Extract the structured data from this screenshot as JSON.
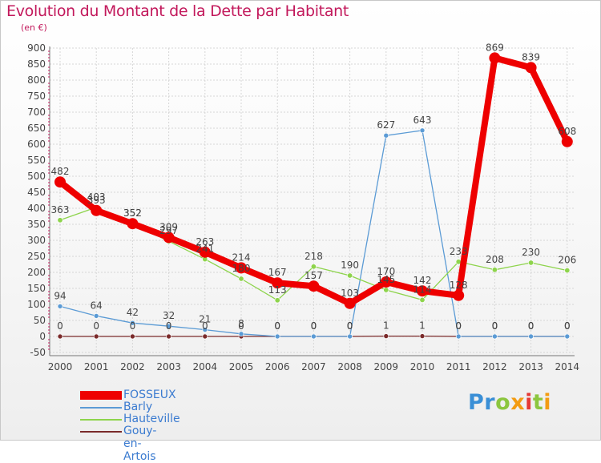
{
  "header": {
    "title": "Evolution du Montant de la Dette par Habitant",
    "subtitle": "(en €)"
  },
  "logo": {
    "letters": [
      {
        "char": "P",
        "color": "#3a8fd6"
      },
      {
        "char": "r",
        "color": "#3a8fd6"
      },
      {
        "char": "o",
        "color": "#8cc63f"
      },
      {
        "char": "x",
        "color": "#f39c12"
      },
      {
        "char": "i",
        "color": "#e53935"
      },
      {
        "char": "t",
        "color": "#8cc63f"
      },
      {
        "char": "i",
        "color": "#f39c12"
      }
    ]
  },
  "chart_data": {
    "type": "line",
    "title": "Evolution du Montant de la Dette par Habitant",
    "ylabel": "(en €)",
    "x": [
      "2000",
      "2001",
      "2002",
      "2003",
      "2004",
      "2005",
      "2006",
      "2007",
      "2008",
      "2009",
      "2010",
      "2011",
      "2012",
      "2013",
      "2014"
    ],
    "y_ticks": [
      "900",
      "850",
      "800",
      "750",
      "700",
      "650",
      "600",
      "550",
      "500",
      "450",
      "400",
      "350",
      "300",
      "250",
      "200",
      "150",
      "100",
      "50",
      "0",
      "-50"
    ],
    "ylim": [
      -50,
      900
    ],
    "grid": true,
    "series": [
      {
        "name": "FOSSEUX",
        "color": "#ee0000",
        "values": [
          482,
          393,
          352,
          309,
          263,
          214,
          167,
          157,
          103,
          170,
          142,
          128,
          869,
          839,
          608
        ]
      },
      {
        "name": "Barly",
        "color": "#5b9bd5",
        "values": [
          94,
          64,
          42,
          32,
          21,
          8,
          0,
          0,
          0,
          627,
          643,
          0,
          0,
          0,
          0
        ]
      },
      {
        "name": "Hauteville",
        "color": "#8ed44c",
        "values": [
          363,
          403,
          352,
          297,
          241,
          180,
          113,
          218,
          190,
          145,
          114,
          233,
          208,
          230,
          206
        ]
      },
      {
        "name": "Gouy-en-Artois",
        "color": "#7a2a2a",
        "values": [
          0,
          0,
          0,
          0,
          0,
          0,
          0,
          0,
          0,
          1,
          1,
          0,
          0,
          0,
          0
        ]
      }
    ]
  }
}
